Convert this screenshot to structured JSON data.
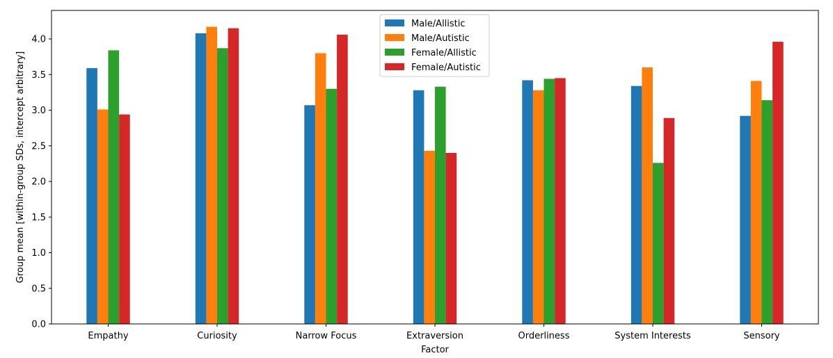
{
  "chart_data": {
    "type": "bar",
    "title": "",
    "xlabel": "Factor",
    "ylabel": "Group mean [within-group SDs, intercept arbitrary]",
    "categories": [
      "Empathy",
      "Curiosity",
      "Narrow Focus",
      "Extraversion",
      "Orderliness",
      "System Interests",
      "Sensory"
    ],
    "ylim": [
      0,
      4.4
    ],
    "yticks": [
      "0.0",
      "0.5",
      "1.0",
      "1.5",
      "2.0",
      "2.5",
      "3.0",
      "3.5",
      "4.0"
    ],
    "grid": false,
    "legend_position": "upper center",
    "series": [
      {
        "name": "Male/Allistic",
        "color": "#1f77b4",
        "values": [
          3.59,
          4.08,
          3.07,
          3.28,
          3.42,
          3.34,
          2.92
        ]
      },
      {
        "name": "Male/Autistic",
        "color": "#ff7f0e",
        "values": [
          3.01,
          4.17,
          3.8,
          2.43,
          3.28,
          3.6,
          3.41
        ]
      },
      {
        "name": "Female/Allistic",
        "color": "#2ca02c",
        "values": [
          3.84,
          3.87,
          3.3,
          3.33,
          3.44,
          2.26,
          3.14
        ]
      },
      {
        "name": "Female/Autistic",
        "color": "#d62728",
        "values": [
          2.94,
          4.15,
          4.06,
          2.4,
          3.45,
          2.89,
          3.96
        ]
      }
    ]
  }
}
